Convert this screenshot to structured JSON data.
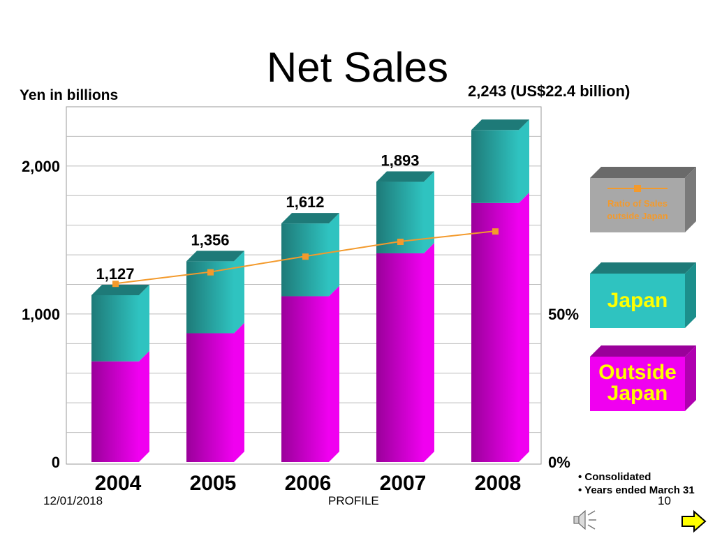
{
  "slide": {
    "title": "Net Sales",
    "y_unit": "Yen in billions",
    "top_total": "2,243 (US$22.4 billion)",
    "notes": [
      "• Consolidated",
      "• Years ended March 31"
    ],
    "footer_date": "12/01/2018",
    "footer_center": "PROFILE",
    "footer_page": "10"
  },
  "colors": {
    "japan_front": "#2fc3c0",
    "japan_dark": "#1e7a78",
    "outside_front": "#f000f0",
    "outside_dark": "#9a009a",
    "ratio_line": "#f39a2c",
    "legend_gray": "#9a9a9a",
    "legend_outside_text": "#ffff00",
    "legend_japan_text": "#ffff00",
    "nav_arrow": "#ffff00"
  },
  "chart_data": {
    "type": "bar",
    "stacked": true,
    "categories": [
      "2004",
      "2005",
      "2006",
      "2007",
      "2008"
    ],
    "series": [
      {
        "name": "Outside Japan",
        "values": [
          680,
          870,
          1120,
          1410,
          1750
        ]
      },
      {
        "name": "Japan",
        "values": [
          447,
          486,
          492,
          483,
          493
        ]
      }
    ],
    "totals": [
      1127,
      1356,
      1612,
      1893,
      2243
    ],
    "total_labels": [
      "1,127",
      "1,356",
      "1,612",
      "1,893",
      ""
    ],
    "ratio_series": {
      "name": "Ratio of Sales outside Japan",
      "values": [
        60.3,
        64.2,
        69.5,
        74.5,
        78.0
      ]
    },
    "y_left": {
      "ticks": [
        0,
        1000,
        2000
      ],
      "tick_labels": [
        "0",
        "1,000",
        "2,000"
      ],
      "max": 2400
    },
    "y_right": {
      "ticks": [
        0,
        50
      ],
      "tick_labels": [
        "0%",
        "50%"
      ],
      "max": 120
    },
    "legend": [
      "Ratio of Sales outside Japan",
      "Japan",
      "Outside Japan"
    ],
    "grid": true
  }
}
